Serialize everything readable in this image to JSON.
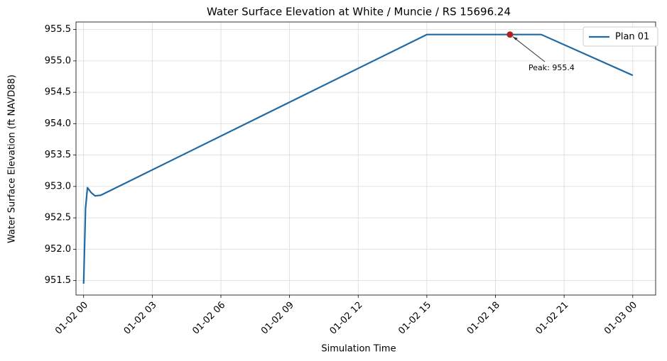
{
  "chart_data": {
    "type": "line",
    "title": "Water Surface Elevation at White / Muncie / RS 15696.24",
    "x_label": "Simulation Time",
    "y_label": "Water Surface Elevation (ft NAVD88)",
    "series": [
      {
        "name": "Plan 01",
        "color": "#1f6aa5",
        "x": [
          "01-02 00:00",
          "01-02 00:05",
          "01-02 00:10",
          "01-02 00:20",
          "01-02 00:30",
          "01-02 00:45",
          "01-02 15:00",
          "01-02 20:00",
          "01-03 00:00"
        ],
        "values": [
          951.45,
          952.65,
          952.98,
          952.9,
          952.85,
          952.86,
          955.42,
          955.42,
          954.77
        ]
      }
    ],
    "peak": {
      "x": "01-02 18:38",
      "value": 955.42,
      "label": "Peak: 955.4",
      "color": "#b22222"
    },
    "xlim": [
      "01-01 23:40",
      "01-03 01:00"
    ],
    "xticks": [
      "01-02 00",
      "01-02 03",
      "01-02 06",
      "01-02 09",
      "01-02 12",
      "01-02 15",
      "01-02 18",
      "01-02 21",
      "01-03 00"
    ],
    "ylim": [
      951.27,
      955.62
    ],
    "yticks": [
      951.5,
      {
        "value": 952,
        "label": "952.0"
      },
      952.5,
      {
        "value": 953,
        "label": "953.0"
      },
      953.5,
      {
        "value": 954,
        "label": "954.0"
      },
      954.5,
      {
        "value": 955,
        "label": "955.0"
      },
      955.5
    ],
    "grid": true,
    "legend": "upper-right"
  }
}
